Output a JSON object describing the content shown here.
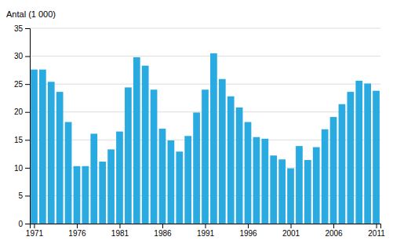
{
  "chart_data": {
    "type": "bar",
    "ylabel": "Antal (1 000)",
    "x": [
      1971,
      1972,
      1973,
      1974,
      1975,
      1976,
      1977,
      1978,
      1979,
      1980,
      1981,
      1982,
      1983,
      1984,
      1985,
      1986,
      1987,
      1988,
      1989,
      1990,
      1991,
      1992,
      1993,
      1994,
      1995,
      1996,
      1997,
      1998,
      1999,
      2000,
      2001,
      2002,
      2003,
      2004,
      2005,
      2006,
      2007,
      2008,
      2009,
      2010,
      2011
    ],
    "values": [
      27.6,
      27.6,
      25.4,
      23.6,
      18.2,
      10.3,
      10.3,
      16.1,
      11.1,
      13.3,
      16.5,
      24.4,
      29.8,
      28.3,
      24.0,
      17.0,
      14.9,
      12.9,
      15.7,
      19.9,
      24.0,
      30.5,
      25.9,
      22.8,
      20.8,
      18.2,
      15.5,
      15.2,
      12.2,
      11.5,
      9.9,
      13.9,
      11.4,
      13.7,
      16.9,
      19.1,
      21.4,
      23.6,
      25.6,
      25.1,
      23.8
    ],
    "color": "#29ABE2",
    "xlim": [
      1970.5,
      2011.5
    ],
    "xticks": [
      1971,
      1976,
      1981,
      1986,
      1991,
      1996,
      2001,
      2006,
      2011
    ],
    "ylim": [
      0,
      35
    ],
    "yticks": [
      0,
      5,
      10,
      15,
      20,
      25,
      30,
      35
    ],
    "grid": true
  }
}
